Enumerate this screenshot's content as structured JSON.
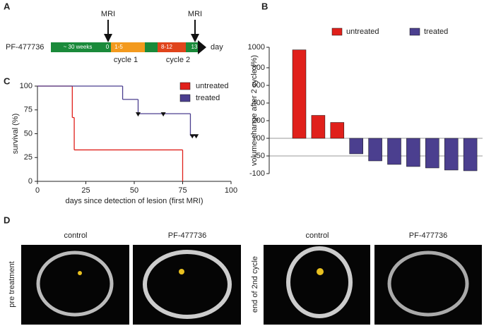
{
  "panel_a": {
    "letter": "A",
    "drug": "PF-477736",
    "mri_1": "MRI",
    "mri_2": "MRI",
    "seg_weeks": "~ 30 weeks",
    "seg_0": "0",
    "seg_1_5": "1-5",
    "seg_8_12": "8-12",
    "seg_13": "13",
    "day": "day",
    "cycle_1": "cycle 1",
    "cycle_2": "cycle 2"
  },
  "chart_data": [
    {
      "type": "bar",
      "letter": "B",
      "y_label": "volume change after 2 cycle (%)",
      "baseline": 100,
      "ylim": [
        -100,
        1000
      ],
      "yticks": [
        1000,
        800,
        600,
        400,
        200,
        100,
        -50,
        -100
      ],
      "series": [
        {
          "name": "untreated",
          "color": "#e0201b",
          "values": [
            975,
            260,
            190
          ]
        },
        {
          "name": "treated",
          "color": "#4b3f8f",
          "values": [
            -32,
            -64,
            -74,
            -80,
            -84,
            -90,
            -92
          ]
        }
      ]
    },
    {
      "type": "step",
      "letter": "C",
      "x_label": "days since detection of lesion (first MRI)",
      "y_label": "survival (%)",
      "xlim": [
        0,
        100
      ],
      "xticks": [
        0,
        25,
        50,
        75,
        100
      ],
      "ylim": [
        0,
        100
      ],
      "yticks": [
        0,
        25,
        50,
        75,
        100
      ],
      "series": [
        {
          "name": "untreated",
          "color": "#e0201b",
          "x": [
            0,
            18,
            19,
            75
          ],
          "values": [
            100,
            67,
            33,
            0
          ]
        },
        {
          "name": "treated",
          "color": "#4b3f8f",
          "x": [
            0,
            44,
            52,
            79,
            82
          ],
          "values": [
            100,
            86,
            71,
            48,
            48
          ],
          "censored_x": [
            52,
            65,
            80,
            82
          ],
          "censored_values": [
            71,
            71,
            48,
            48
          ]
        }
      ]
    }
  ],
  "panel_d": {
    "letter": "D",
    "col_1": "control",
    "col_2": "PF-477736",
    "col_3": "control",
    "col_4": "PF-477736",
    "row_1": "pre treatment",
    "row_2": "end of 2nd cycle"
  }
}
